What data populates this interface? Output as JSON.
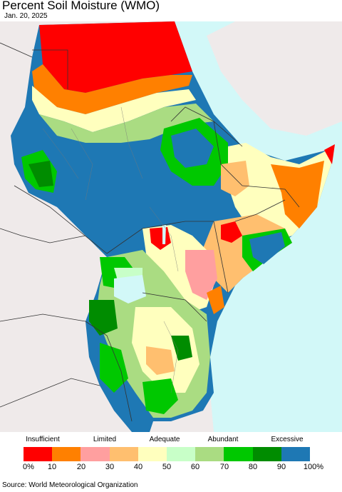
{
  "title": "Percent Soil Moisture (WMO)",
  "date": "Jan. 20, 2025",
  "legend": {
    "categories": [
      {
        "label": "Insufficient"
      },
      {
        "label": "Limited"
      },
      {
        "label": "Adequate"
      },
      {
        "label": "Abundant"
      },
      {
        "label": "Excessive"
      }
    ],
    "colors": [
      "#ff0000",
      "#ff8000",
      "#ff9f9f",
      "#ffbf6f",
      "#ffffbe",
      "#c8ffc8",
      "#aadc82",
      "#00c800",
      "#008c00",
      "#1e78b4"
    ],
    "ticks": [
      "0%",
      "10",
      "20",
      "30",
      "40",
      "50",
      "60",
      "70",
      "80",
      "90",
      "100%"
    ]
  },
  "source": "Source: World Meteorological Organization"
}
